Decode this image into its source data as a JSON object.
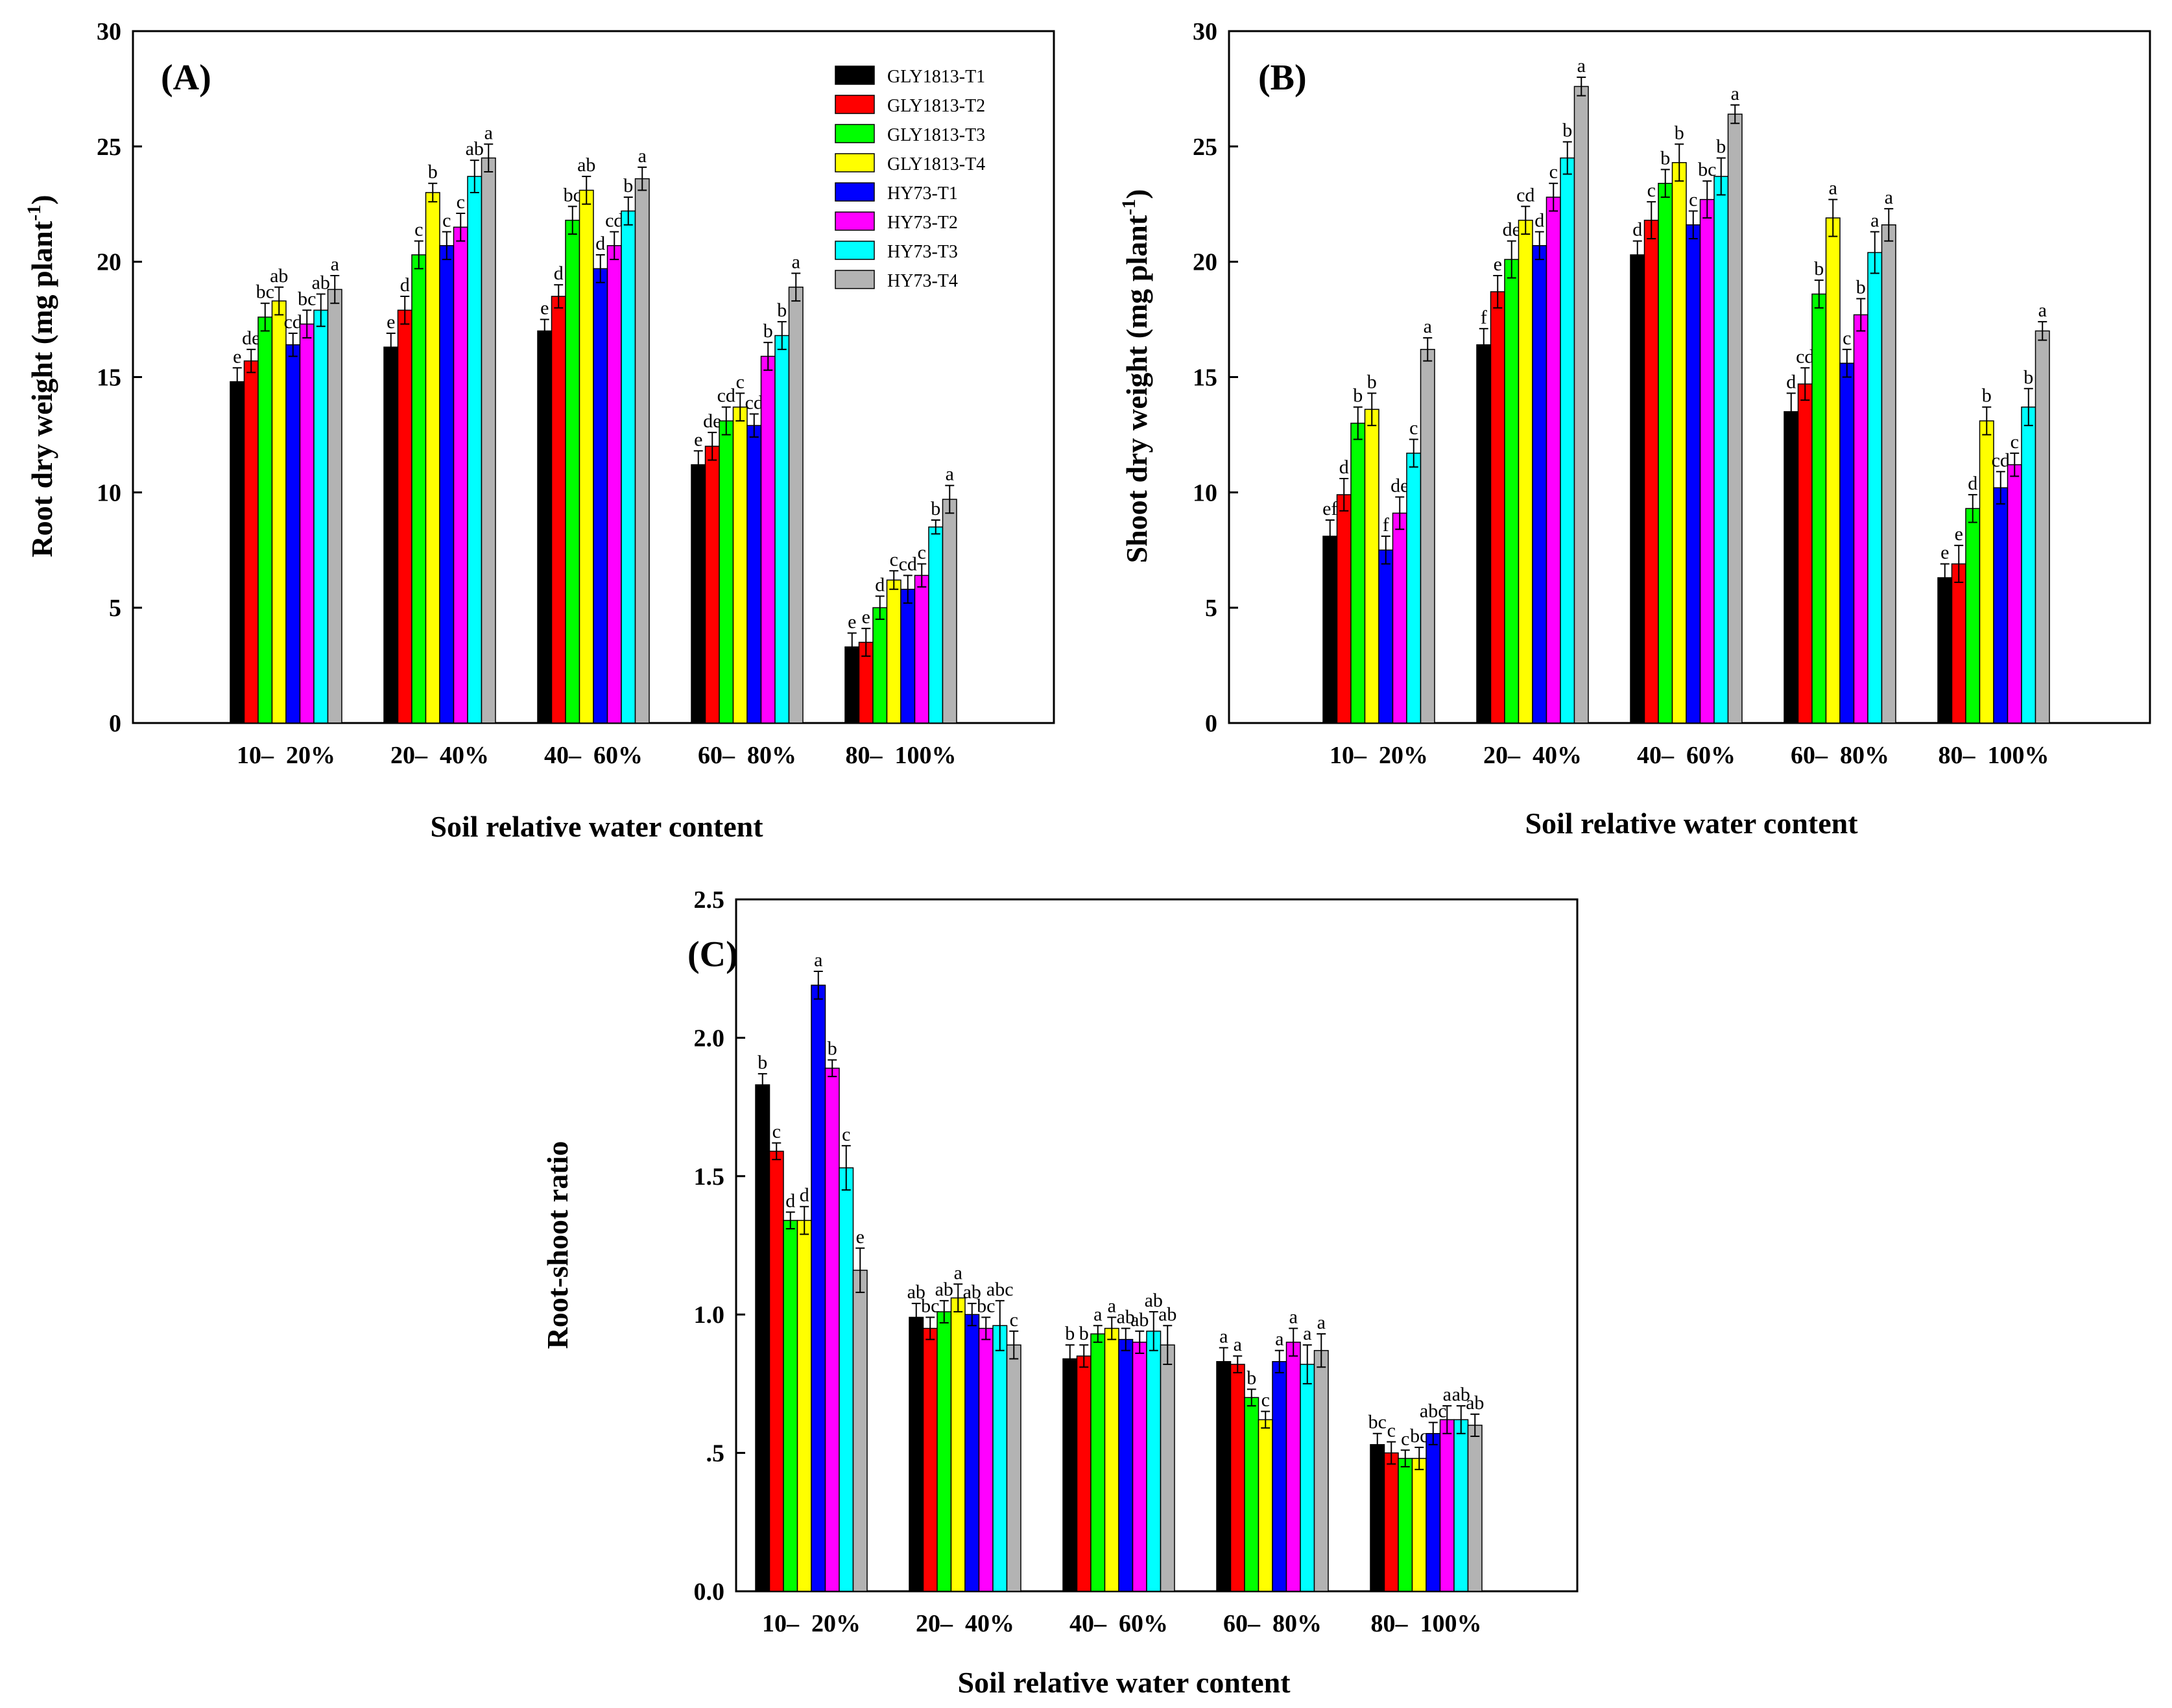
{
  "chart_data": [
    {
      "id": "A",
      "type": "bar",
      "panel_label": "(A)",
      "title": "",
      "ylabel": "Root dry weight (mg plant-1)",
      "ylabel_main": "Root dry weight (mg plant",
      "ylabel_sup": "-1",
      "ylabel_end": ")",
      "xlabel": "Soil relative water content",
      "ylim": [
        0,
        30
      ],
      "yticks": [
        0,
        5,
        10,
        15,
        20,
        25,
        30
      ],
      "ytick_labels": [
        "0",
        "5",
        "10",
        "15",
        "20",
        "25",
        "30"
      ],
      "categories": [
        "10–  20%",
        "20–  40%",
        "40–  60%",
        "60–  80%",
        "80–  100%"
      ],
      "legend_position": "top-right",
      "series": [
        {
          "name": "GLY1813-T1",
          "color": "#000000",
          "values": [
            14.8,
            16.3,
            17.0,
            11.2,
            3.3
          ],
          "errors": [
            0.6,
            0.6,
            0.5,
            0.6,
            0.6
          ],
          "letters": [
            "e",
            "e",
            "e",
            "e",
            "e"
          ]
        },
        {
          "name": "GLY1813-T2",
          "color": "#ff0000",
          "values": [
            15.7,
            17.9,
            18.5,
            12.0,
            3.5
          ],
          "errors": [
            0.5,
            0.6,
            0.5,
            0.6,
            0.6
          ],
          "letters": [
            "de",
            "d",
            "d",
            "de",
            "e"
          ]
        },
        {
          "name": "GLY1813-T3",
          "color": "#00ff00",
          "values": [
            17.6,
            20.3,
            21.8,
            13.1,
            5.0
          ],
          "errors": [
            0.6,
            0.6,
            0.6,
            0.6,
            0.5
          ],
          "letters": [
            "bc",
            "c",
            "bc",
            "cd",
            "d"
          ]
        },
        {
          "name": "GLY1813-T4",
          "color": "#ffff00",
          "values": [
            18.3,
            23.0,
            23.1,
            13.7,
            6.2
          ],
          "errors": [
            0.6,
            0.4,
            0.6,
            0.6,
            0.4
          ],
          "letters": [
            "ab",
            "b",
            "ab",
            "c",
            "c"
          ]
        },
        {
          "name": "HY73-T1",
          "color": "#0000ff",
          "values": [
            16.4,
            20.7,
            19.7,
            12.9,
            5.8
          ],
          "errors": [
            0.5,
            0.6,
            0.6,
            0.5,
            0.6
          ],
          "letters": [
            "cd",
            "c",
            "d",
            "cd",
            "cd"
          ]
        },
        {
          "name": "HY73-T2",
          "color": "#ff00ff",
          "values": [
            17.3,
            21.5,
            20.7,
            15.9,
            6.4
          ],
          "errors": [
            0.6,
            0.6,
            0.6,
            0.6,
            0.5
          ],
          "letters": [
            "bc",
            "c",
            "cd",
            "b",
            "c"
          ]
        },
        {
          "name": "HY73-T3",
          "color": "#00ffff",
          "values": [
            17.9,
            23.7,
            22.2,
            16.8,
            8.5
          ],
          "errors": [
            0.7,
            0.7,
            0.6,
            0.6,
            0.3
          ],
          "letters": [
            "ab",
            "ab",
            "b",
            "b",
            "b"
          ]
        },
        {
          "name": "HY73-T4",
          "color": "#b3b3b3",
          "values": [
            18.8,
            24.5,
            23.6,
            18.9,
            9.7
          ],
          "errors": [
            0.6,
            0.6,
            0.5,
            0.6,
            0.6
          ],
          "letters": [
            "a",
            "a",
            "a",
            "a",
            "a"
          ]
        }
      ]
    },
    {
      "id": "B",
      "type": "bar",
      "panel_label": "(B)",
      "title": "",
      "ylabel": "Shoot dry weight (mg plant-1)",
      "ylabel_main": "Shoot dry weight (mg plant",
      "ylabel_sup": "-1",
      "ylabel_end": ")",
      "xlabel": "Soil relative water content",
      "ylim": [
        0,
        30
      ],
      "yticks": [
        0,
        5,
        10,
        15,
        20,
        25,
        30
      ],
      "ytick_labels": [
        "0",
        "5",
        "10",
        "15",
        "20",
        "25",
        "30"
      ],
      "categories": [
        "10–  20%",
        "20–  40%",
        "40–  60%",
        "60–  80%",
        "80–  100%"
      ],
      "series": [
        {
          "name": "GLY1813-T1",
          "color": "#000000",
          "values": [
            8.1,
            16.4,
            20.3,
            13.5,
            6.3
          ],
          "errors": [
            0.7,
            0.7,
            0.6,
            0.8,
            0.6
          ],
          "letters": [
            "ef",
            "f",
            "d",
            "d",
            "e"
          ]
        },
        {
          "name": "GLY1813-T2",
          "color": "#ff0000",
          "values": [
            9.9,
            18.7,
            21.8,
            14.7,
            6.9
          ],
          "errors": [
            0.7,
            0.7,
            0.8,
            0.7,
            0.8
          ],
          "letters": [
            "d",
            "e",
            "c",
            "cd",
            "e"
          ]
        },
        {
          "name": "GLY1813-T3",
          "color": "#00ff00",
          "values": [
            13.0,
            20.1,
            23.4,
            18.6,
            9.3
          ],
          "errors": [
            0.7,
            0.8,
            0.6,
            0.6,
            0.6
          ],
          "letters": [
            "b",
            "de",
            "b",
            "b",
            "d"
          ]
        },
        {
          "name": "GLY1813-T4",
          "color": "#ffff00",
          "values": [
            13.6,
            21.8,
            24.3,
            21.9,
            13.1
          ],
          "errors": [
            0.7,
            0.6,
            0.8,
            0.8,
            0.6
          ],
          "letters": [
            "b",
            "cd",
            "b",
            "a",
            "b"
          ]
        },
        {
          "name": "HY73-T1",
          "color": "#0000ff",
          "values": [
            7.5,
            20.7,
            21.6,
            15.6,
            10.2
          ],
          "errors": [
            0.6,
            0.6,
            0.6,
            0.6,
            0.7
          ],
          "letters": [
            "f",
            "d",
            "c",
            "c",
            "cd"
          ]
        },
        {
          "name": "HY73-T2",
          "color": "#ff00ff",
          "values": [
            9.1,
            22.8,
            22.7,
            17.7,
            11.2
          ],
          "errors": [
            0.7,
            0.6,
            0.8,
            0.7,
            0.5
          ],
          "letters": [
            "de",
            "c",
            "bc",
            "b",
            "c"
          ]
        },
        {
          "name": "HY73-T3",
          "color": "#00ffff",
          "values": [
            11.7,
            24.5,
            23.7,
            20.4,
            13.7
          ],
          "errors": [
            0.6,
            0.7,
            0.8,
            0.9,
            0.8
          ],
          "letters": [
            "c",
            "b",
            "b",
            "a",
            "b"
          ]
        },
        {
          "name": "HY73-T4",
          "color": "#b3b3b3",
          "values": [
            16.2,
            27.6,
            26.4,
            21.6,
            17.0
          ],
          "errors": [
            0.5,
            0.4,
            0.4,
            0.7,
            0.4
          ],
          "letters": [
            "a",
            "a",
            "a",
            "a",
            "a"
          ]
        }
      ]
    },
    {
      "id": "C",
      "type": "bar",
      "panel_label": "(C)",
      "title": "",
      "ylabel": "Root-shoot ratio",
      "ylabel_main": "Root-shoot ratio",
      "ylabel_sup": "",
      "ylabel_end": "",
      "xlabel": "Soil relative water content",
      "ylim": [
        0,
        2.5
      ],
      "yticks": [
        0,
        0.5,
        1.0,
        1.5,
        2.0,
        2.5
      ],
      "ytick_labels": [
        "0.0",
        ".5",
        "1.0",
        "1.5",
        "2.0",
        "2.5"
      ],
      "categories": [
        "10–  20%",
        "20–  40%",
        "40–  60%",
        "60–  80%",
        "80–  100%"
      ],
      "series": [
        {
          "name": "GLY1813-T1",
          "color": "#000000",
          "values": [
            1.83,
            0.99,
            0.84,
            0.83,
            0.53
          ],
          "errors": [
            0.04,
            0.05,
            0.05,
            0.05,
            0.04
          ],
          "letters": [
            "b",
            "ab",
            "b",
            "a",
            "bc"
          ]
        },
        {
          "name": "GLY1813-T2",
          "color": "#ff0000",
          "values": [
            1.59,
            0.95,
            0.85,
            0.82,
            0.5
          ],
          "errors": [
            0.03,
            0.04,
            0.04,
            0.03,
            0.04
          ],
          "letters": [
            "c",
            "bc",
            "b",
            "a",
            "c"
          ]
        },
        {
          "name": "GLY1813-T3",
          "color": "#00ff00",
          "values": [
            1.34,
            1.01,
            0.93,
            0.7,
            0.48
          ],
          "errors": [
            0.03,
            0.04,
            0.03,
            0.03,
            0.03
          ],
          "letters": [
            "d",
            "ab",
            "a",
            "b",
            "c"
          ]
        },
        {
          "name": "GLY1813-T4",
          "color": "#ffff00",
          "values": [
            1.34,
            1.06,
            0.95,
            0.62,
            0.48
          ],
          "errors": [
            0.05,
            0.05,
            0.04,
            0.03,
            0.04
          ],
          "letters": [
            "d",
            "a",
            "a",
            "c",
            "bc"
          ]
        },
        {
          "name": "HY73-T1",
          "color": "#0000ff",
          "values": [
            2.19,
            1.0,
            0.91,
            0.83,
            0.57
          ],
          "errors": [
            0.05,
            0.04,
            0.04,
            0.04,
            0.04
          ],
          "letters": [
            "a",
            "ab",
            "ab",
            "a",
            "abc"
          ]
        },
        {
          "name": "HY73-T2",
          "color": "#ff00ff",
          "values": [
            1.89,
            0.95,
            0.9,
            0.9,
            0.62
          ],
          "errors": [
            0.03,
            0.04,
            0.04,
            0.05,
            0.05
          ],
          "letters": [
            "b",
            "bc",
            "ab",
            "a",
            "a"
          ]
        },
        {
          "name": "HY73-T3",
          "color": "#00ffff",
          "values": [
            1.53,
            0.96,
            0.94,
            0.82,
            0.62
          ],
          "errors": [
            0.08,
            0.09,
            0.07,
            0.07,
            0.05
          ],
          "letters": [
            "c",
            "abc",
            "ab",
            "a",
            "ab"
          ]
        },
        {
          "name": "HY73-T4",
          "color": "#b3b3b3",
          "values": [
            1.16,
            0.89,
            0.89,
            0.87,
            0.6
          ],
          "errors": [
            0.08,
            0.05,
            0.07,
            0.06,
            0.04
          ],
          "letters": [
            "e",
            "c",
            "ab",
            "a",
            "ab"
          ]
        }
      ]
    }
  ]
}
